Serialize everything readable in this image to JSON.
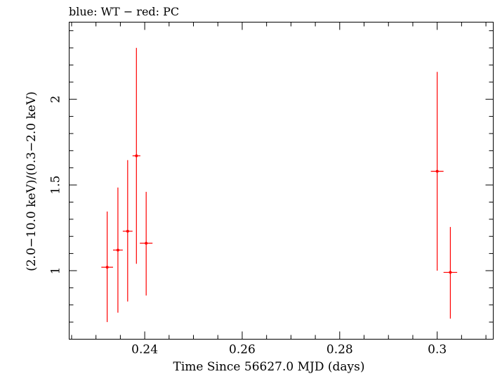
{
  "chart_data": {
    "type": "scatter",
    "title": "blue: WT − red: PC",
    "xlabel": "Time Since 56627.0 MJD (days)",
    "ylabel": "(2.0−10.0 keV)/(0.3−2.0 keV)",
    "xlim": [
      0.2245,
      0.3115
    ],
    "ylim": [
      0.6,
      2.45
    ],
    "x_ticks": [
      {
        "value": 0.24,
        "label": "0.24"
      },
      {
        "value": 0.26,
        "label": "0.26"
      },
      {
        "value": 0.28,
        "label": "0.28"
      },
      {
        "value": 0.3,
        "label": "0.3"
      }
    ],
    "y_ticks": [
      {
        "value": 1,
        "label": "1"
      },
      {
        "value": 1.5,
        "label": "1.5"
      },
      {
        "value": 2,
        "label": "2"
      }
    ],
    "grid": false,
    "series": [
      {
        "color": "#ff0000",
        "points": [
          {
            "x": 0.2323,
            "xerr": 0.0012,
            "y": 1.02,
            "ylo": 0.7,
            "yhi": 1.345
          },
          {
            "x": 0.2345,
            "xerr": 0.001,
            "y": 1.12,
            "ylo": 0.755,
            "yhi": 1.485
          },
          {
            "x": 0.2365,
            "xerr": 0.001,
            "y": 1.23,
            "ylo": 0.82,
            "yhi": 1.645
          },
          {
            "x": 0.2383,
            "xerr": 0.0008,
            "y": 1.67,
            "ylo": 1.04,
            "yhi": 2.3
          },
          {
            "x": 0.2403,
            "xerr": 0.0013,
            "y": 1.16,
            "ylo": 0.855,
            "yhi": 1.46
          },
          {
            "x": 0.3,
            "xerr": 0.0013,
            "y": 1.58,
            "ylo": 1.0,
            "yhi": 2.16
          },
          {
            "x": 0.3027,
            "xerr": 0.0014,
            "y": 0.99,
            "ylo": 0.72,
            "yhi": 1.255
          }
        ]
      }
    ]
  }
}
